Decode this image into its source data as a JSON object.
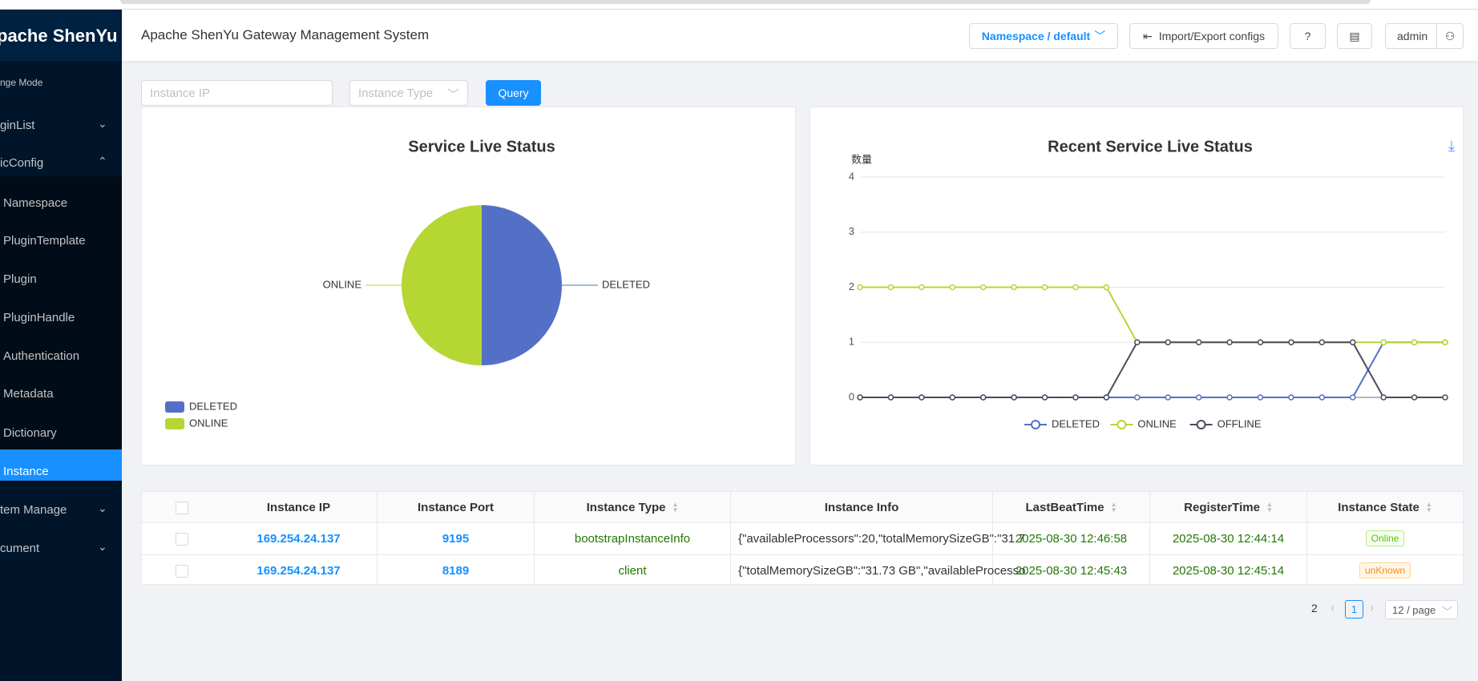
{
  "sidebar": {
    "logo": "pache ShenYu",
    "items": [
      "nge Mode",
      "ginList",
      "icConfig",
      "Namespace",
      "PluginTemplate",
      "Plugin",
      "PluginHandle",
      "Authentication",
      "Metadata",
      "Dictionary",
      "Instance",
      "tem Manage",
      "cument"
    ]
  },
  "header": {
    "title": "Apache ShenYu Gateway Management System",
    "namespace": "Namespace / default",
    "import_export": "Import/Export configs",
    "user": "admin"
  },
  "filters": {
    "instance_ip": "Instance IP",
    "instance_type": "Instance Type",
    "query": "Query"
  },
  "chart_data": [
    {
      "type": "pie",
      "title": "Service Live Status",
      "categories": [
        "DELETED",
        "ONLINE"
      ],
      "values": [
        1,
        1
      ],
      "colors": [
        "#5470c6",
        "#b6d634"
      ],
      "legend": "bottom-left"
    },
    {
      "type": "line",
      "title": "Recent Service Live Status",
      "y_axis_label": "数量",
      "categories": [
        null,
        null,
        null,
        null,
        null,
        null,
        null,
        null,
        null,
        null,
        null,
        null,
        null,
        null,
        null,
        null,
        null,
        null,
        null,
        null
      ],
      "series": [
        {
          "name": "DELETED",
          "color": "#5470c6",
          "values": [
            0,
            0,
            0,
            0,
            0,
            0,
            0,
            0,
            0,
            0,
            0,
            0,
            0,
            0,
            0,
            0,
            0,
            1,
            1,
            1
          ]
        },
        {
          "name": "ONLINE",
          "color": "#b6d634",
          "values": [
            2,
            2,
            2,
            2,
            2,
            2,
            2,
            2,
            2,
            1,
            1,
            1,
            1,
            1,
            1,
            1,
            1,
            1,
            1,
            1
          ]
        },
        {
          "name": "OFFLINE",
          "color": "#4b4b5c",
          "values": [
            0,
            0,
            0,
            0,
            0,
            0,
            0,
            0,
            0,
            1,
            1,
            1,
            1,
            1,
            1,
            1,
            1,
            0,
            0,
            0
          ]
        }
      ],
      "ylim": [
        0,
        4
      ],
      "yticks": [
        0,
        1,
        2,
        3,
        4
      ],
      "grid": true,
      "legend": "bottom"
    }
  ],
  "table": {
    "headers": [
      "Instance IP",
      "Instance Port",
      "Instance Type",
      "Instance Info",
      "LastBeatTime",
      "RegisterTime",
      "Instance State"
    ],
    "rows": [
      [
        "169.254.24.137",
        "9195",
        "bootstrapInstanceInfo",
        "{\"availableProcessors\":20,\"totalMemorySizeGB\":\"31.7",
        "2025-08-30 12:46:58",
        "2025-08-30 12:44:14",
        "Online"
      ],
      [
        "169.254.24.137",
        "8189",
        "client",
        "{\"totalMemorySizeGB\":\"31.73 GB\",\"availableProcesso",
        "2025-08-30 12:45:43",
        "2025-08-30 12:45:14",
        "unKnown"
      ]
    ]
  },
  "pagination": {
    "total": 2,
    "current": 1,
    "page_size": "12 / page"
  }
}
